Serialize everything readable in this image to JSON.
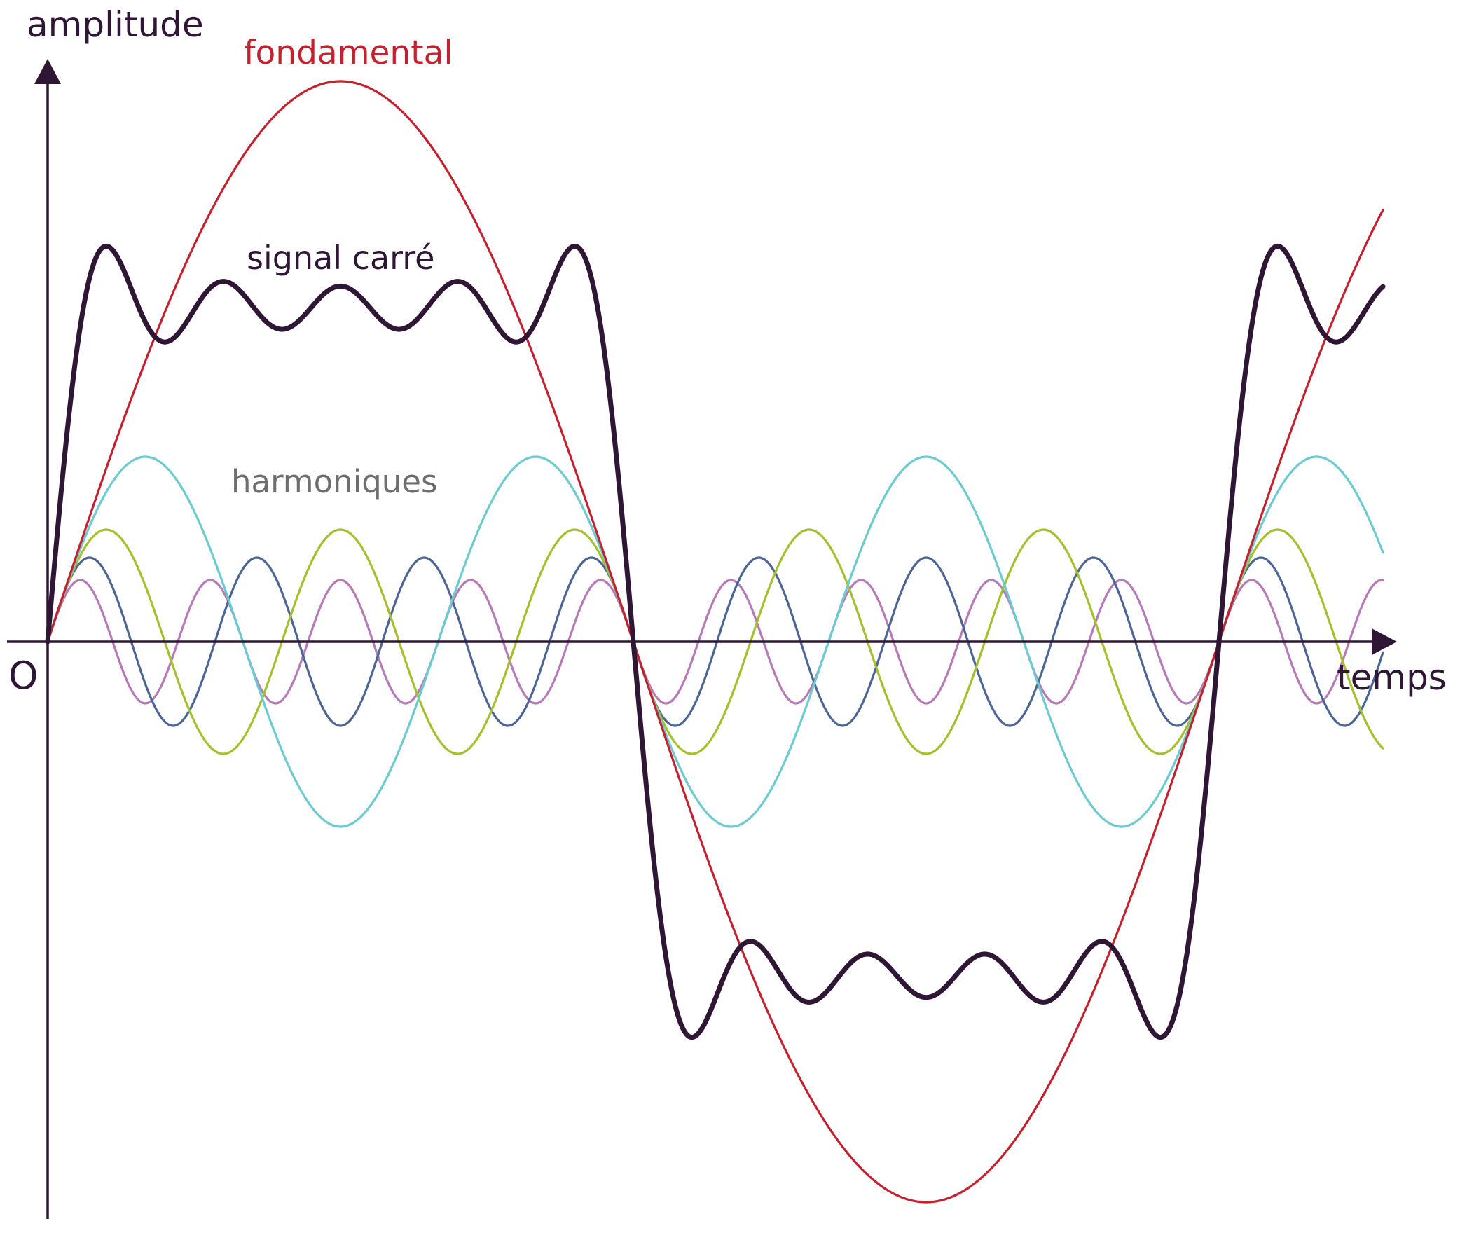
{
  "labels": {
    "y_axis": "amplitude",
    "x_axis": "temps",
    "origin": "O",
    "fundamental": "fondamental",
    "square_signal": "signal carré",
    "harmonics": "harmoniques"
  },
  "colors": {
    "axis": "#2e1634",
    "square_signal": "#2e1634",
    "fundamental": "#c4212e",
    "harmonic_3": "#6ccbd0",
    "harmonic_5": "#a2c12d",
    "harmonic_7": "#4d6595",
    "harmonic_9": "#b77ab8",
    "harmonics_label": "#6e6e6e"
  },
  "signal": {
    "periods_shown": 1.14,
    "fundamental_amplitude": 1.0,
    "harmonics": [
      {
        "order": 3,
        "amplitude": 0.33,
        "color_key": "harmonic_3"
      },
      {
        "order": 5,
        "amplitude": 0.2,
        "color_key": "harmonic_5"
      },
      {
        "order": 7,
        "amplitude": 0.15,
        "color_key": "harmonic_7"
      },
      {
        "order": 9,
        "amplitude": 0.11,
        "color_key": "harmonic_9"
      }
    ],
    "square_wave_terms": [
      1,
      3,
      5,
      7,
      9
    ]
  }
}
